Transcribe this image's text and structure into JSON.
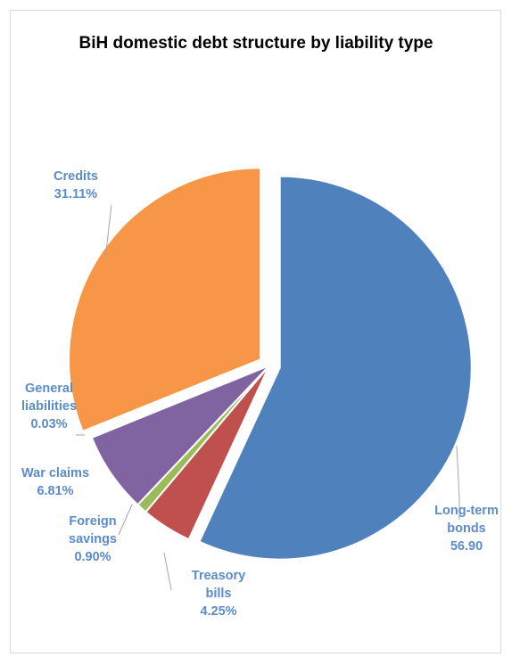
{
  "chart_data": {
    "type": "pie",
    "title": "BiH domestic debt structure by liability type",
    "slices": [
      {
        "label_lines": [
          "Long-term",
          "bonds"
        ],
        "value_label": "56.90",
        "value": 56.9,
        "color": "#4f81bd",
        "exploded": true
      },
      {
        "label_lines": [
          "Treasory",
          "bills"
        ],
        "value_label": "4.25%",
        "value": 4.25,
        "color": "#c0504d",
        "exploded": false
      },
      {
        "label_lines": [
          "Foreign",
          "savings"
        ],
        "value_label": "0.90%",
        "value": 0.9,
        "color": "#9bbb59",
        "exploded": false
      },
      {
        "label_lines": [
          "War claims"
        ],
        "value_label": "6.81%",
        "value": 6.81,
        "color": "#8064a2",
        "exploded": false
      },
      {
        "label_lines": [
          "General",
          "liabilities"
        ],
        "value_label": "0.03%",
        "value": 0.03,
        "color": "#4bacc6",
        "exploded": false
      },
      {
        "label_lines": [
          "Credits"
        ],
        "value_label": "31.11%",
        "value": 31.11,
        "color": "#f79646",
        "exploded": true
      }
    ],
    "legend": "none"
  }
}
